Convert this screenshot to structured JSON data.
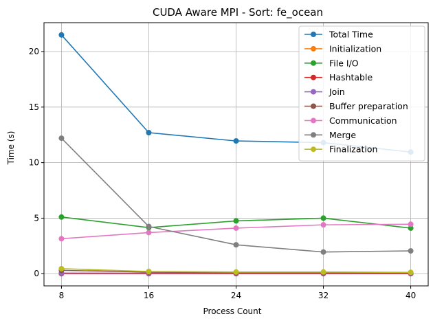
{
  "chart_data": {
    "type": "line",
    "title": "CUDA Aware MPI - Sort: fe_ocean",
    "xlabel": "Process Count",
    "ylabel": "Time (s)",
    "x": [
      8,
      16,
      24,
      32,
      40
    ],
    "x_ticks": [
      "8",
      "16",
      "24",
      "32",
      "40"
    ],
    "y_ticks": [
      "0",
      "5",
      "10",
      "15",
      "20"
    ],
    "xlim": [
      6.4,
      41.6
    ],
    "ylim": [
      -1.1,
      22.6
    ],
    "grid": true,
    "legend_position": "top-right",
    "series": [
      {
        "name": "Total Time",
        "color": "#1f77b4",
        "values": [
          21.5,
          12.7,
          11.95,
          11.8,
          10.95
        ]
      },
      {
        "name": "Initialization",
        "color": "#ff7f0e",
        "values": [
          0.05,
          0.05,
          0.05,
          0.05,
          0.05
        ]
      },
      {
        "name": "File I/O",
        "color": "#2ca02c",
        "values": [
          5.1,
          4.15,
          4.75,
          5.0,
          4.1
        ]
      },
      {
        "name": "Hashtable",
        "color": "#d62728",
        "values": [
          0.0,
          0.0,
          0.0,
          0.0,
          0.0
        ]
      },
      {
        "name": "Join",
        "color": "#9467bd",
        "values": [
          0.05,
          0.05,
          0.05,
          0.05,
          0.05
        ]
      },
      {
        "name": "Buffer preparation",
        "color": "#8c564b",
        "values": [
          0.3,
          0.15,
          0.1,
          0.1,
          0.1
        ]
      },
      {
        "name": "Communication",
        "color": "#e377c2",
        "values": [
          3.15,
          3.7,
          4.1,
          4.4,
          4.45
        ]
      },
      {
        "name": "Merge",
        "color": "#7f7f7f",
        "values": [
          12.2,
          4.25,
          2.6,
          1.95,
          2.05
        ]
      },
      {
        "name": "Finalization",
        "color": "#bcbd22",
        "values": [
          0.45,
          0.2,
          0.15,
          0.15,
          0.12
        ]
      }
    ]
  }
}
